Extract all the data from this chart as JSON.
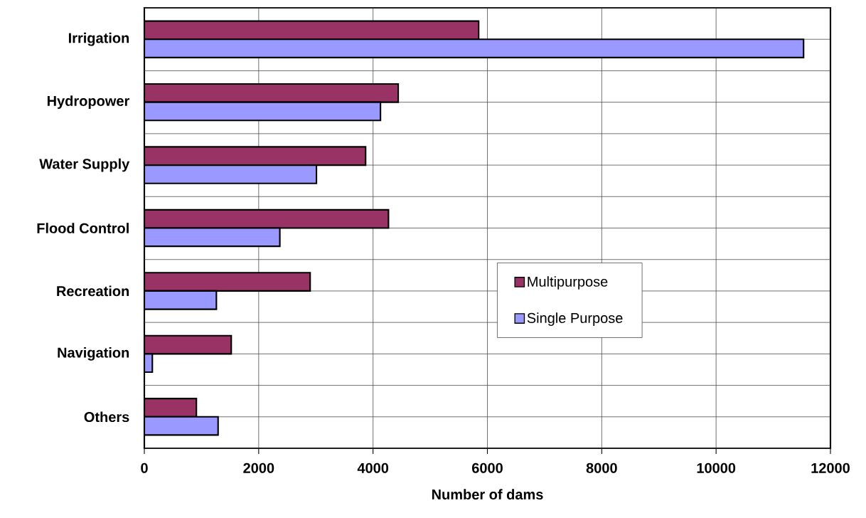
{
  "chart_data": {
    "type": "bar",
    "orientation": "horizontal",
    "categories": [
      "Irrigation",
      "Hydropower",
      "Water Supply",
      "Flood Control",
      "Recreation",
      "Navigation",
      "Others"
    ],
    "series": [
      {
        "name": "Multipurpose",
        "color": "#993366",
        "values": [
          5850,
          4440,
          3870,
          4270,
          2900,
          1520,
          910
        ]
      },
      {
        "name": "Single Purpose",
        "color": "#9999ff",
        "values": [
          11530,
          4130,
          3010,
          2370,
          1260,
          140,
          1290
        ]
      }
    ],
    "xlabel": "Number of dams",
    "xlim": [
      0,
      12000
    ],
    "xticks": [
      0,
      2000,
      4000,
      6000,
      8000,
      10000,
      12000
    ],
    "grid": true,
    "legend": "right"
  }
}
